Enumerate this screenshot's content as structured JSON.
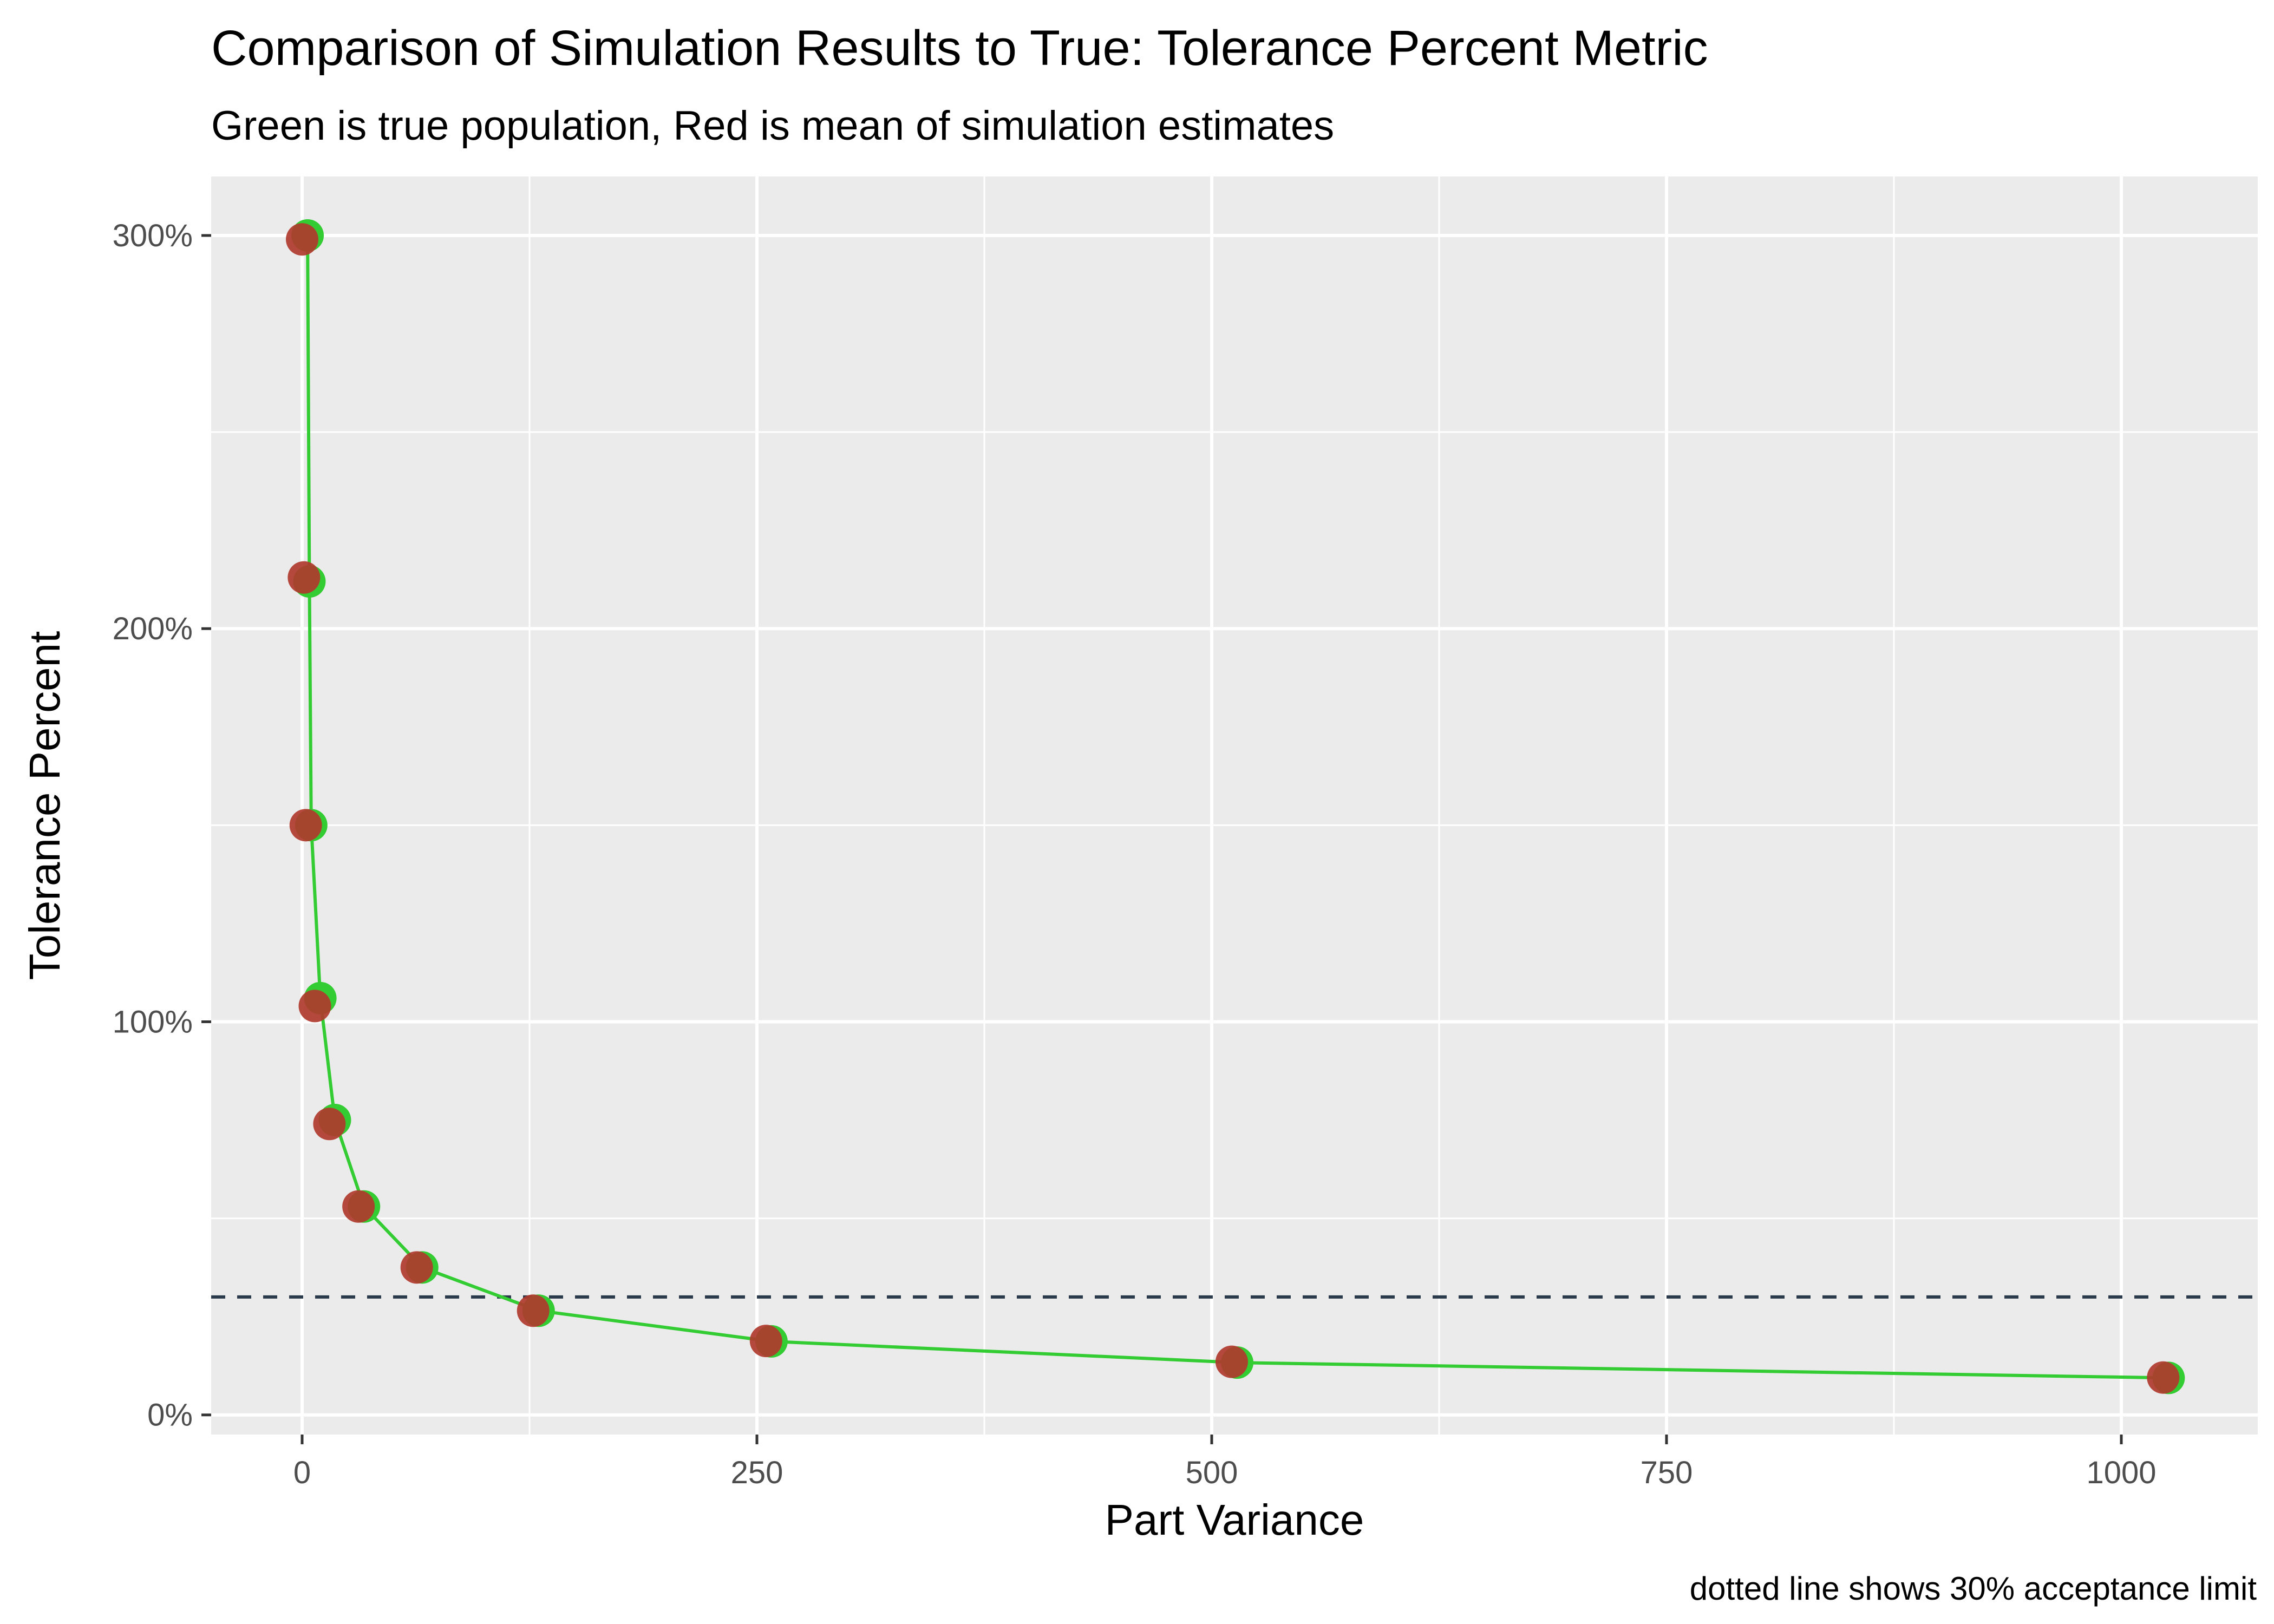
{
  "chart_data": {
    "type": "scatter",
    "title": "Comparison of Simulation Results to True: Tolerance Percent Metric",
    "subtitle": "Green is true population, Red is mean of simulation estimates",
    "xlabel": "Part Variance",
    "ylabel": "Tolerance Percent",
    "caption": "dotted line shows 30% acceptance limit",
    "xlim": [
      -50,
      1075
    ],
    "ylim": [
      -5,
      315
    ],
    "x_ticks": [
      0,
      250,
      500,
      750,
      1000
    ],
    "x_tick_labels": [
      "0",
      "250",
      "500",
      "750",
      "1000"
    ],
    "x_minor_ticks": [
      125,
      375,
      625,
      875
    ],
    "y_ticks": [
      0,
      100,
      200,
      300
    ],
    "y_tick_labels": [
      "0%",
      "100%",
      "200%",
      "300%"
    ],
    "y_minor_ticks": [
      50,
      150,
      250
    ],
    "grid": true,
    "reference_line": {
      "y": 30,
      "style": "dashed",
      "color": "#2b3a4a"
    },
    "series": [
      {
        "role": "true",
        "color": "#33cc33",
        "line": true,
        "x": [
          3,
          4,
          5,
          10,
          18,
          34,
          66,
          130,
          258,
          514,
          1026
        ],
        "y": [
          300,
          212,
          150,
          106,
          75,
          53,
          37.5,
          26.5,
          18.7,
          13.3,
          9.4
        ]
      },
      {
        "role": "simulation_mean",
        "color": "#b03a2e",
        "line": false,
        "x": [
          0,
          1,
          2,
          7,
          15,
          31,
          63,
          127,
          255,
          511,
          1023
        ],
        "y": [
          299,
          213,
          150,
          104,
          74,
          53,
          37.5,
          26.5,
          18.8,
          13.5,
          9.5
        ]
      }
    ]
  }
}
